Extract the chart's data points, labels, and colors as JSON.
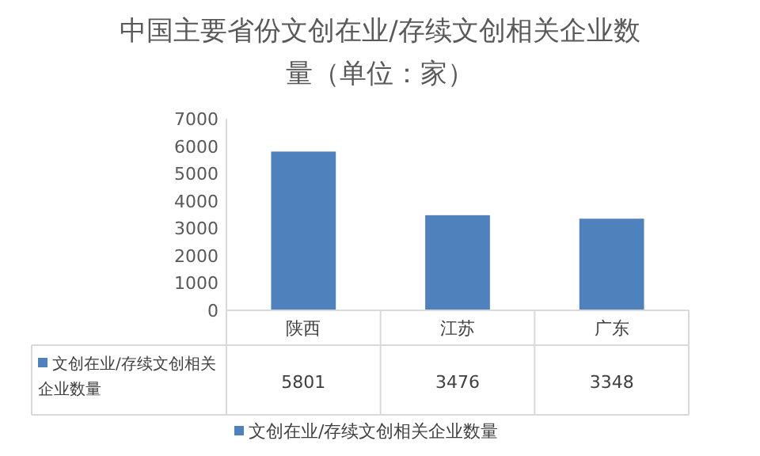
{
  "chart_data": {
    "type": "bar",
    "title": "中国主要省份文创在业/存续文创相关企业数量（单位：家）",
    "categories": [
      "陕西",
      "江苏",
      "广东"
    ],
    "series": [
      {
        "name": "文创在业/存续文创相关企业数量",
        "color": "#4f81bd",
        "values": [
          5801,
          3476,
          3348
        ]
      }
    ],
    "ylim": [
      0,
      7000
    ],
    "yticks": [
      0,
      1000,
      2000,
      3000,
      4000,
      5000,
      6000,
      7000
    ],
    "data_labels": true,
    "legend": "bottom"
  }
}
